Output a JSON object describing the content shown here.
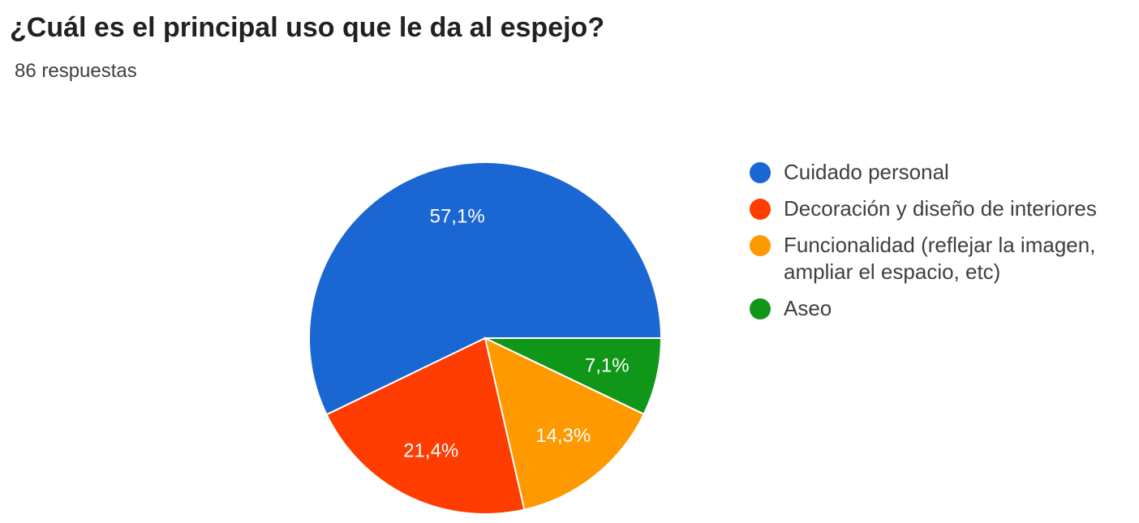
{
  "question": {
    "title": "¿Cuál es el principal uso que le da al espejo?",
    "responses": "86 respuestas"
  },
  "chart_data": {
    "type": "pie",
    "title": "¿Cuál es el principal uso que le da al espejo?",
    "slices": [
      {
        "label": "Cuidado personal",
        "value": 57.1,
        "display": "57,1%",
        "color": "#1a66d2"
      },
      {
        "label": "Decoración y diseño de interiores",
        "value": 21.4,
        "display": "21,4%",
        "color": "#ff3d00"
      },
      {
        "label": "Funcionalidad (reflejar la imagen, ampliar el espacio, etc)",
        "value": 14.3,
        "display": "14,3%",
        "color": "#ff9900"
      },
      {
        "label": "Aseo",
        "value": 7.1,
        "display": "7,1%",
        "color": "#109618"
      }
    ],
    "legend_position": "right"
  }
}
